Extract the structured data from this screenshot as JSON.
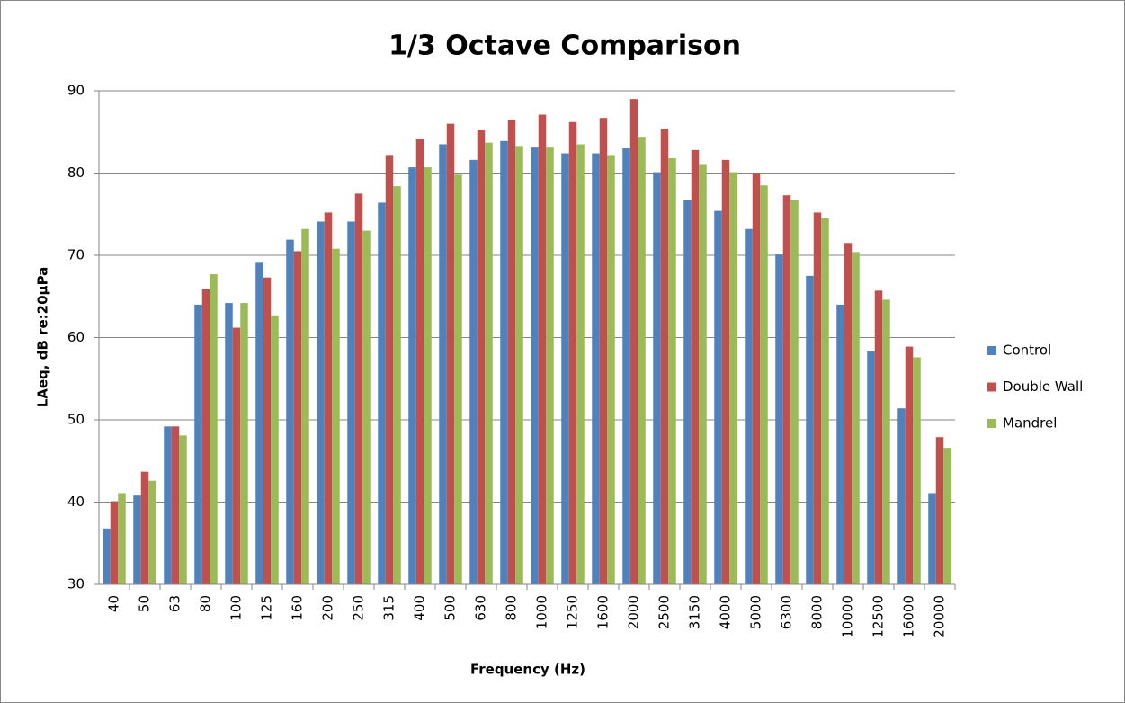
{
  "chart_data": {
    "type": "bar",
    "title": "1/3 Octave Comparison",
    "x_label": "Frequency (Hz)",
    "y_label": "LAeq, dB re:20µPa",
    "categories": [
      "40",
      "50",
      "63",
      "80",
      "100",
      "125",
      "160",
      "200",
      "250",
      "315",
      "400",
      "500",
      "630",
      "800",
      "1000",
      "1250",
      "1600",
      "2000",
      "2500",
      "3150",
      "4000",
      "5000",
      "6300",
      "8000",
      "10000",
      "12500",
      "16000",
      "20000"
    ],
    "series": [
      {
        "name": "Control",
        "color": "#4f81bd",
        "values": [
          36.8,
          40.8,
          49.2,
          64.0,
          64.2,
          69.2,
          71.9,
          74.1,
          74.1,
          76.4,
          80.7,
          83.5,
          81.6,
          83.9,
          83.1,
          82.4,
          82.4,
          83.0,
          80.1,
          76.7,
          75.4,
          73.2,
          70.1,
          67.5,
          64.0,
          58.3,
          51.4,
          41.1
        ]
      },
      {
        "name": "Double Wall",
        "color": "#c0504d",
        "values": [
          40.1,
          43.7,
          49.2,
          65.9,
          61.2,
          67.3,
          70.5,
          75.2,
          77.5,
          82.2,
          84.1,
          86.0,
          85.2,
          86.5,
          87.1,
          86.2,
          86.7,
          89.0,
          85.4,
          82.8,
          81.6,
          80.0,
          77.3,
          75.2,
          71.5,
          65.7,
          58.9,
          47.9
        ]
      },
      {
        "name": "Mandrel",
        "color": "#9bbb59",
        "values": [
          41.1,
          42.6,
          48.1,
          67.7,
          64.2,
          62.7,
          73.2,
          70.8,
          73.0,
          78.4,
          80.7,
          79.8,
          83.7,
          83.3,
          83.1,
          83.5,
          82.2,
          84.4,
          81.8,
          81.1,
          80.1,
          78.5,
          76.7,
          74.5,
          70.4,
          64.6,
          57.6,
          46.6
        ]
      }
    ],
    "ylim": [
      30,
      90
    ],
    "yticks": [
      30,
      40,
      50,
      60,
      70,
      80,
      90
    ],
    "grid": true,
    "legend": "right"
  }
}
